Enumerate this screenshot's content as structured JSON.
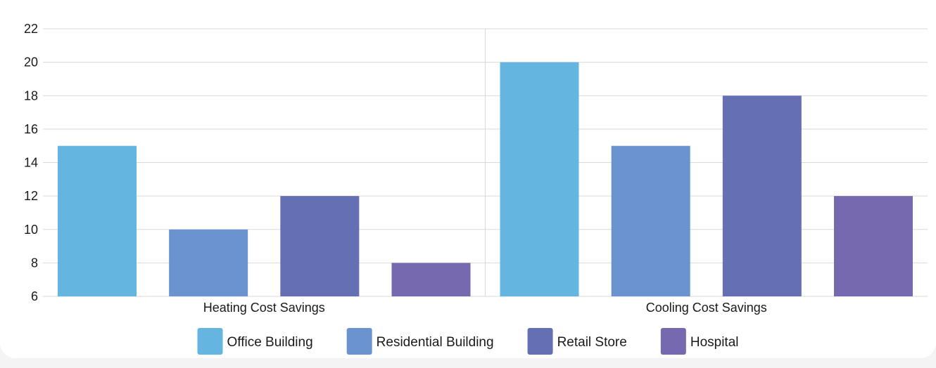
{
  "chart_data": {
    "type": "bar",
    "categories": [
      "Heating Cost Savings",
      "Cooling Cost Savings"
    ],
    "series": [
      {
        "name": "Office Building",
        "values": [
          15,
          20
        ],
        "color": "#64b6e0"
      },
      {
        "name": "Residential Building",
        "values": [
          10,
          15
        ],
        "color": "#6b93cf"
      },
      {
        "name": "Retail Store",
        "values": [
          12,
          18
        ],
        "color": "#656fb4"
      },
      {
        "name": "Hospital",
        "values": [
          8,
          12
        ],
        "color": "#7769b0"
      }
    ],
    "ylim": [
      6,
      22
    ],
    "yticks": [
      6,
      8,
      10,
      12,
      14,
      16,
      18,
      20,
      22
    ],
    "grid": true,
    "legend_position": "bottom",
    "title": "",
    "xlabel": "",
    "ylabel": ""
  }
}
